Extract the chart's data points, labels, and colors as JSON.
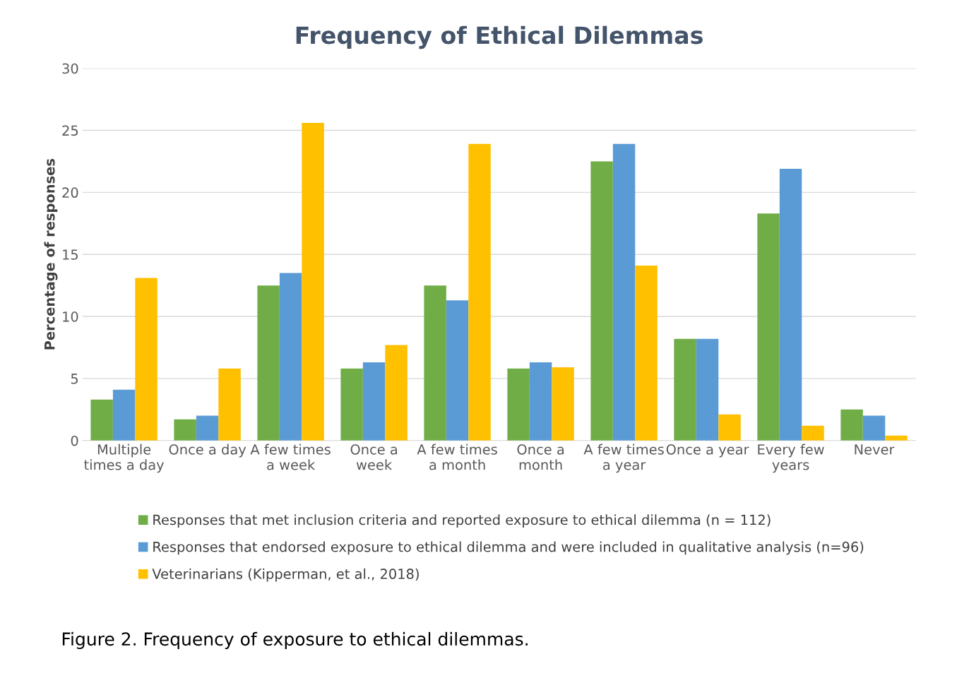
{
  "chart_data": {
    "type": "bar",
    "title": "Frequency of Ethical Dilemmas",
    "ylabel": "Percentage of responses",
    "categories": [
      "Multiple\ntimes a day",
      "Once a day",
      "A few times\na week",
      "Once a\nweek",
      "A few times\na month",
      "Once a\nmonth",
      "A few times\na year",
      "Once a year",
      "Every few\nyears",
      "Never"
    ],
    "series": [
      {
        "name": "Responses that met inclusion criteria and reported exposure to ethical dilemma (n = 112)",
        "color": "#70ad47",
        "values": [
          3.3,
          1.7,
          12.5,
          5.8,
          12.5,
          5.8,
          22.5,
          8.2,
          18.3,
          2.5
        ]
      },
      {
        "name": "Responses that endorsed exposure to ethical dilemma and were included in qualitative analysis (n=96)",
        "color": "#5b9bd5",
        "values": [
          4.1,
          2.0,
          13.5,
          6.3,
          11.3,
          6.3,
          23.9,
          8.2,
          21.9,
          2.0
        ]
      },
      {
        "name": "Veterinarians (Kipperman, et al., 2018)",
        "color": "#ffc000",
        "values": [
          13.1,
          5.8,
          25.6,
          7.7,
          23.9,
          5.9,
          14.1,
          2.1,
          1.2,
          0.4
        ]
      }
    ],
    "ylim": [
      0,
      30
    ],
    "yticks": [
      0,
      5,
      10,
      15,
      20,
      25,
      30
    ],
    "grid": "y",
    "legend": "bottom",
    "annotations": [
      "Figure 2. Frequency of exposure to ethical dilemmas."
    ]
  }
}
